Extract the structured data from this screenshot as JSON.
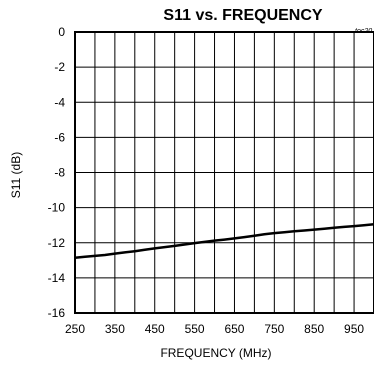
{
  "chart_data": {
    "type": "line",
    "title": "S11 vs. FREQUENCY",
    "tag": "toc20",
    "xlabel": "FREQUENCY (MHz)",
    "ylabel": "S11 (dB)",
    "xlim": [
      250,
      1000
    ],
    "ylim": [
      -16,
      0
    ],
    "xticks": [
      250,
      350,
      450,
      550,
      650,
      750,
      850,
      950
    ],
    "yticks": [
      0,
      -2,
      -4,
      -6,
      -8,
      -10,
      -12,
      -14,
      -16
    ],
    "grid": true,
    "series": [
      {
        "values": [
          {
            "x": 250,
            "y": -12.85
          },
          {
            "x": 275,
            "y": -12.8
          },
          {
            "x": 300,
            "y": -12.75
          },
          {
            "x": 325,
            "y": -12.7
          },
          {
            "x": 350,
            "y": -12.62
          },
          {
            "x": 375,
            "y": -12.55
          },
          {
            "x": 400,
            "y": -12.48
          },
          {
            "x": 425,
            "y": -12.4
          },
          {
            "x": 450,
            "y": -12.32
          },
          {
            "x": 475,
            "y": -12.25
          },
          {
            "x": 500,
            "y": -12.18
          },
          {
            "x": 525,
            "y": -12.1
          },
          {
            "x": 550,
            "y": -12.02
          },
          {
            "x": 575,
            "y": -11.95
          },
          {
            "x": 600,
            "y": -11.88
          },
          {
            "x": 625,
            "y": -11.82
          },
          {
            "x": 650,
            "y": -11.75
          },
          {
            "x": 675,
            "y": -11.68
          },
          {
            "x": 700,
            "y": -11.6
          },
          {
            "x": 725,
            "y": -11.52
          },
          {
            "x": 750,
            "y": -11.45
          },
          {
            "x": 775,
            "y": -11.4
          },
          {
            "x": 800,
            "y": -11.35
          },
          {
            "x": 825,
            "y": -11.3
          },
          {
            "x": 850,
            "y": -11.25
          },
          {
            "x": 875,
            "y": -11.2
          },
          {
            "x": 900,
            "y": -11.15
          },
          {
            "x": 925,
            "y": -11.1
          },
          {
            "x": 950,
            "y": -11.05
          },
          {
            "x": 975,
            "y": -11.0
          },
          {
            "x": 1000,
            "y": -10.95
          }
        ]
      }
    ]
  }
}
